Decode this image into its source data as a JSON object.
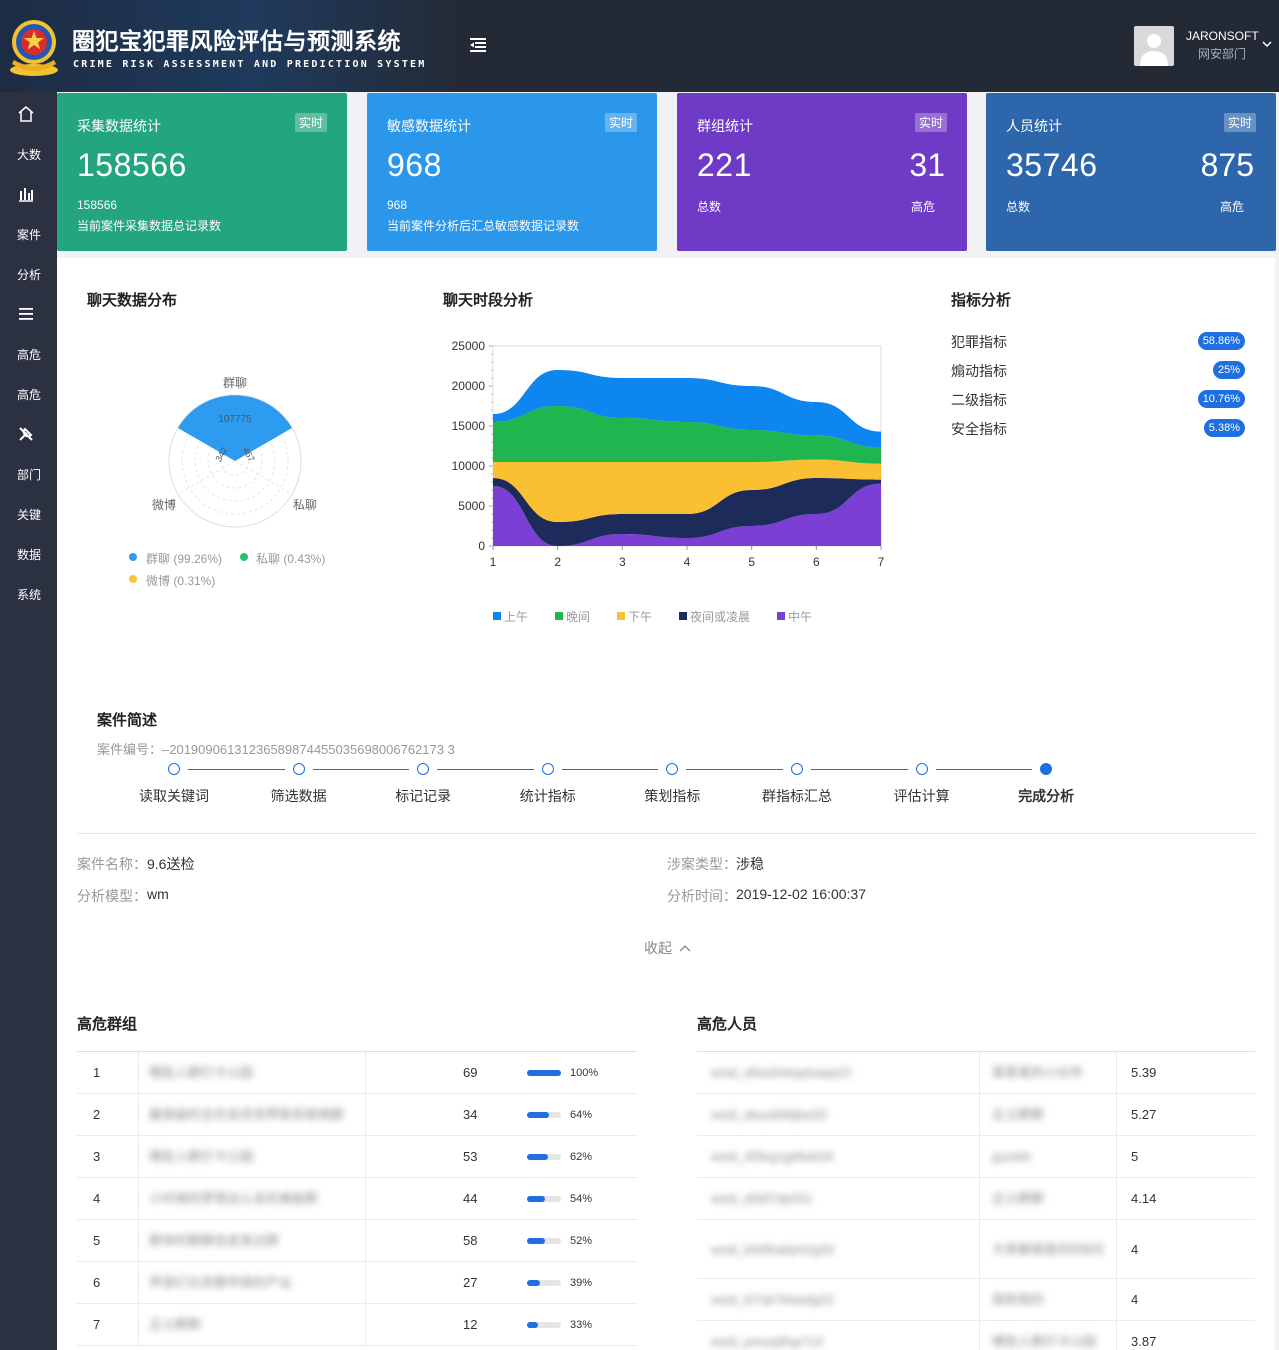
{
  "header": {
    "title": "圈犯宝犯罪风险评估与预测系统",
    "subtitle": "CRIME RISK ASSESSMENT AND PREDICTION SYSTEM",
    "user_name": "JARONSOFT",
    "user_dept": "网安部门"
  },
  "sidebar": {
    "items": [
      {
        "icon": "home-icon",
        "label": ""
      },
      {
        "icon": "",
        "label": "大数"
      },
      {
        "icon": "bar-chart-icon",
        "label": ""
      },
      {
        "icon": "",
        "label": "案件"
      },
      {
        "icon": "",
        "label": "分析"
      },
      {
        "icon": "list-icon",
        "label": ""
      },
      {
        "icon": "",
        "label": "高危"
      },
      {
        "icon": "",
        "label": "高危"
      },
      {
        "icon": "tools-icon",
        "label": ""
      },
      {
        "icon": "",
        "label": "部门"
      },
      {
        "icon": "",
        "label": "关键"
      },
      {
        "icon": "",
        "label": "数据"
      },
      {
        "icon": "",
        "label": "系统"
      }
    ]
  },
  "cards": [
    {
      "title": "采集数据统计",
      "badge": "实时",
      "value": "158566",
      "line1": "158566",
      "line2": "当前案件采集数据总记录数",
      "color": "#23a57d"
    },
    {
      "title": "敏感数据统计",
      "badge": "实时",
      "value": "968",
      "line1": "968",
      "line2": "当前案件分析后汇总敏感数据记录数",
      "color": "#2a97ea"
    },
    {
      "title": "群组统计",
      "badge": "实时",
      "value": "221",
      "value_right": "31",
      "line1": "总数",
      "line_right": "高危",
      "color": "#6f3ac6"
    },
    {
      "title": "人员统计",
      "badge": "实时",
      "value": "35746",
      "value_right": "875",
      "line1": "总数",
      "line_right": "高危",
      "color": "#2e66ac"
    }
  ],
  "chat_dist": {
    "title": "聊天数据分布",
    "labels": {
      "group": "群聊",
      "private": "私聊",
      "weibo": "微博"
    },
    "values": {
      "group": "107775",
      "private": "467",
      "weibo": "342"
    },
    "legend": [
      {
        "label": "群聊 (99.26%)",
        "color": "#2d9bf0"
      },
      {
        "label": "私聊 (0.43%)",
        "color": "#2dbd6e"
      },
      {
        "label": "微博 (0.31%)",
        "color": "#f7c436"
      }
    ]
  },
  "chart_data": {
    "type": "area",
    "title": "聊天时段分析",
    "x": [
      1,
      2,
      3,
      4,
      5,
      6,
      7
    ],
    "ylim": [
      0,
      25000
    ],
    "yticks": [
      0,
      5000,
      10000,
      15000,
      20000,
      25000
    ],
    "stacked": true,
    "legend_position": "bottom",
    "series": [
      {
        "name": "中午",
        "color": "#7b3fd6",
        "values": [
          7500,
          0,
          1500,
          1000,
          2500,
          4000,
          7800
        ]
      },
      {
        "name": "夜间或凌晨",
        "color": "#1c2b5a",
        "values": [
          1000,
          3000,
          2500,
          3000,
          4500,
          4500,
          500
        ]
      },
      {
        "name": "下午",
        "color": "#fbc031",
        "values": [
          2000,
          7500,
          6500,
          6500,
          3500,
          2300,
          2000
        ]
      },
      {
        "name": "晚间",
        "color": "#1fb650",
        "values": [
          5000,
          7000,
          5500,
          5000,
          4000,
          3000,
          2000
        ]
      },
      {
        "name": "上午",
        "color": "#0d87ef",
        "values": [
          1000,
          4500,
          5000,
          5500,
          5500,
          4200,
          2000
        ]
      }
    ]
  },
  "indicators": {
    "title": "指标分析",
    "items": [
      {
        "label": "犯罪指标",
        "value": "58.86%"
      },
      {
        "label": "煽动指标",
        "value": "25%"
      },
      {
        "label": "二级指标",
        "value": "10.76%"
      },
      {
        "label": "安全指标",
        "value": "5.38%"
      }
    ]
  },
  "case": {
    "title": "案件简述",
    "number": "案件编号：–20190906131236589874455035698006762173 3",
    "steps": [
      "读取关键词",
      "筛选数据",
      "标记记录",
      "统计指标",
      "策划指标",
      "群指标汇总",
      "评估计算",
      "完成分析"
    ],
    "name_key": "案件名称：",
    "name_val": "9.6送检",
    "type_key": "涉案类型：",
    "type_val": "涉稳",
    "model_key": "分析模型：",
    "model_val": "wm",
    "time_key": "分析时间：",
    "time_val": "2019-12-02 16:00:37",
    "collapse": "收起"
  },
  "risk_groups": {
    "title": "高危群组",
    "rows": [
      {
        "rank": "1",
        "name": "哪些人群打卡公园",
        "count": "69",
        "pct": "100%",
        "ratio": 1.0
      },
      {
        "rank": "2",
        "name": "最高级的主任会员世界联系联络群",
        "count": "34",
        "pct": "64%",
        "ratio": 0.64
      },
      {
        "rank": "3",
        "name": "哪些人群打卡公园",
        "count": "53",
        "pct": "62%",
        "ratio": 0.62
      },
      {
        "rank": "4",
        "name": "小时候的梦想这么多的难能群",
        "count": "44",
        "pct": "54%",
        "ratio": 0.54
      },
      {
        "rank": "5",
        "name": "群体的聊聊信息发达群",
        "count": "58",
        "pct": "52%",
        "ratio": 0.52
      },
      {
        "rank": "6",
        "name": "声音们北京都市我的产业",
        "count": "27",
        "pct": "39%",
        "ratio": 0.39
      },
      {
        "rank": "7",
        "name": "正义群群",
        "count": "12",
        "pct": "33%",
        "ratio": 0.33
      }
    ]
  },
  "risk_people": {
    "title": "高危人员",
    "rows": [
      {
        "id": "wxid_d5ia3mkqahaqa22",
        "name": "某某某的小伙伴",
        "score": "5.39"
      },
      {
        "id": "wxid_deyuk96jkw33",
        "name": "正义群群",
        "score": "5.27"
      },
      {
        "id": "wxid_45feg1g6fwb33",
        "name": "guolah",
        "score": "5"
      },
      {
        "id": "wxid_d5itf7dp031",
        "name": "正义群群",
        "score": "4.14"
      },
      {
        "id": "wxid_b5i9ha6ph2g33",
        "name": "大家都很喜欢的好朋友",
        "score": "4"
      },
      {
        "id": "wxid_kl7qh7kkwdg22",
        "name": "我和我的",
        "score": "4"
      },
      {
        "id": "wxid_pmuq9hgr7z2",
        "name": "哪些人群打卡公园",
        "score": "3.87"
      }
    ]
  }
}
